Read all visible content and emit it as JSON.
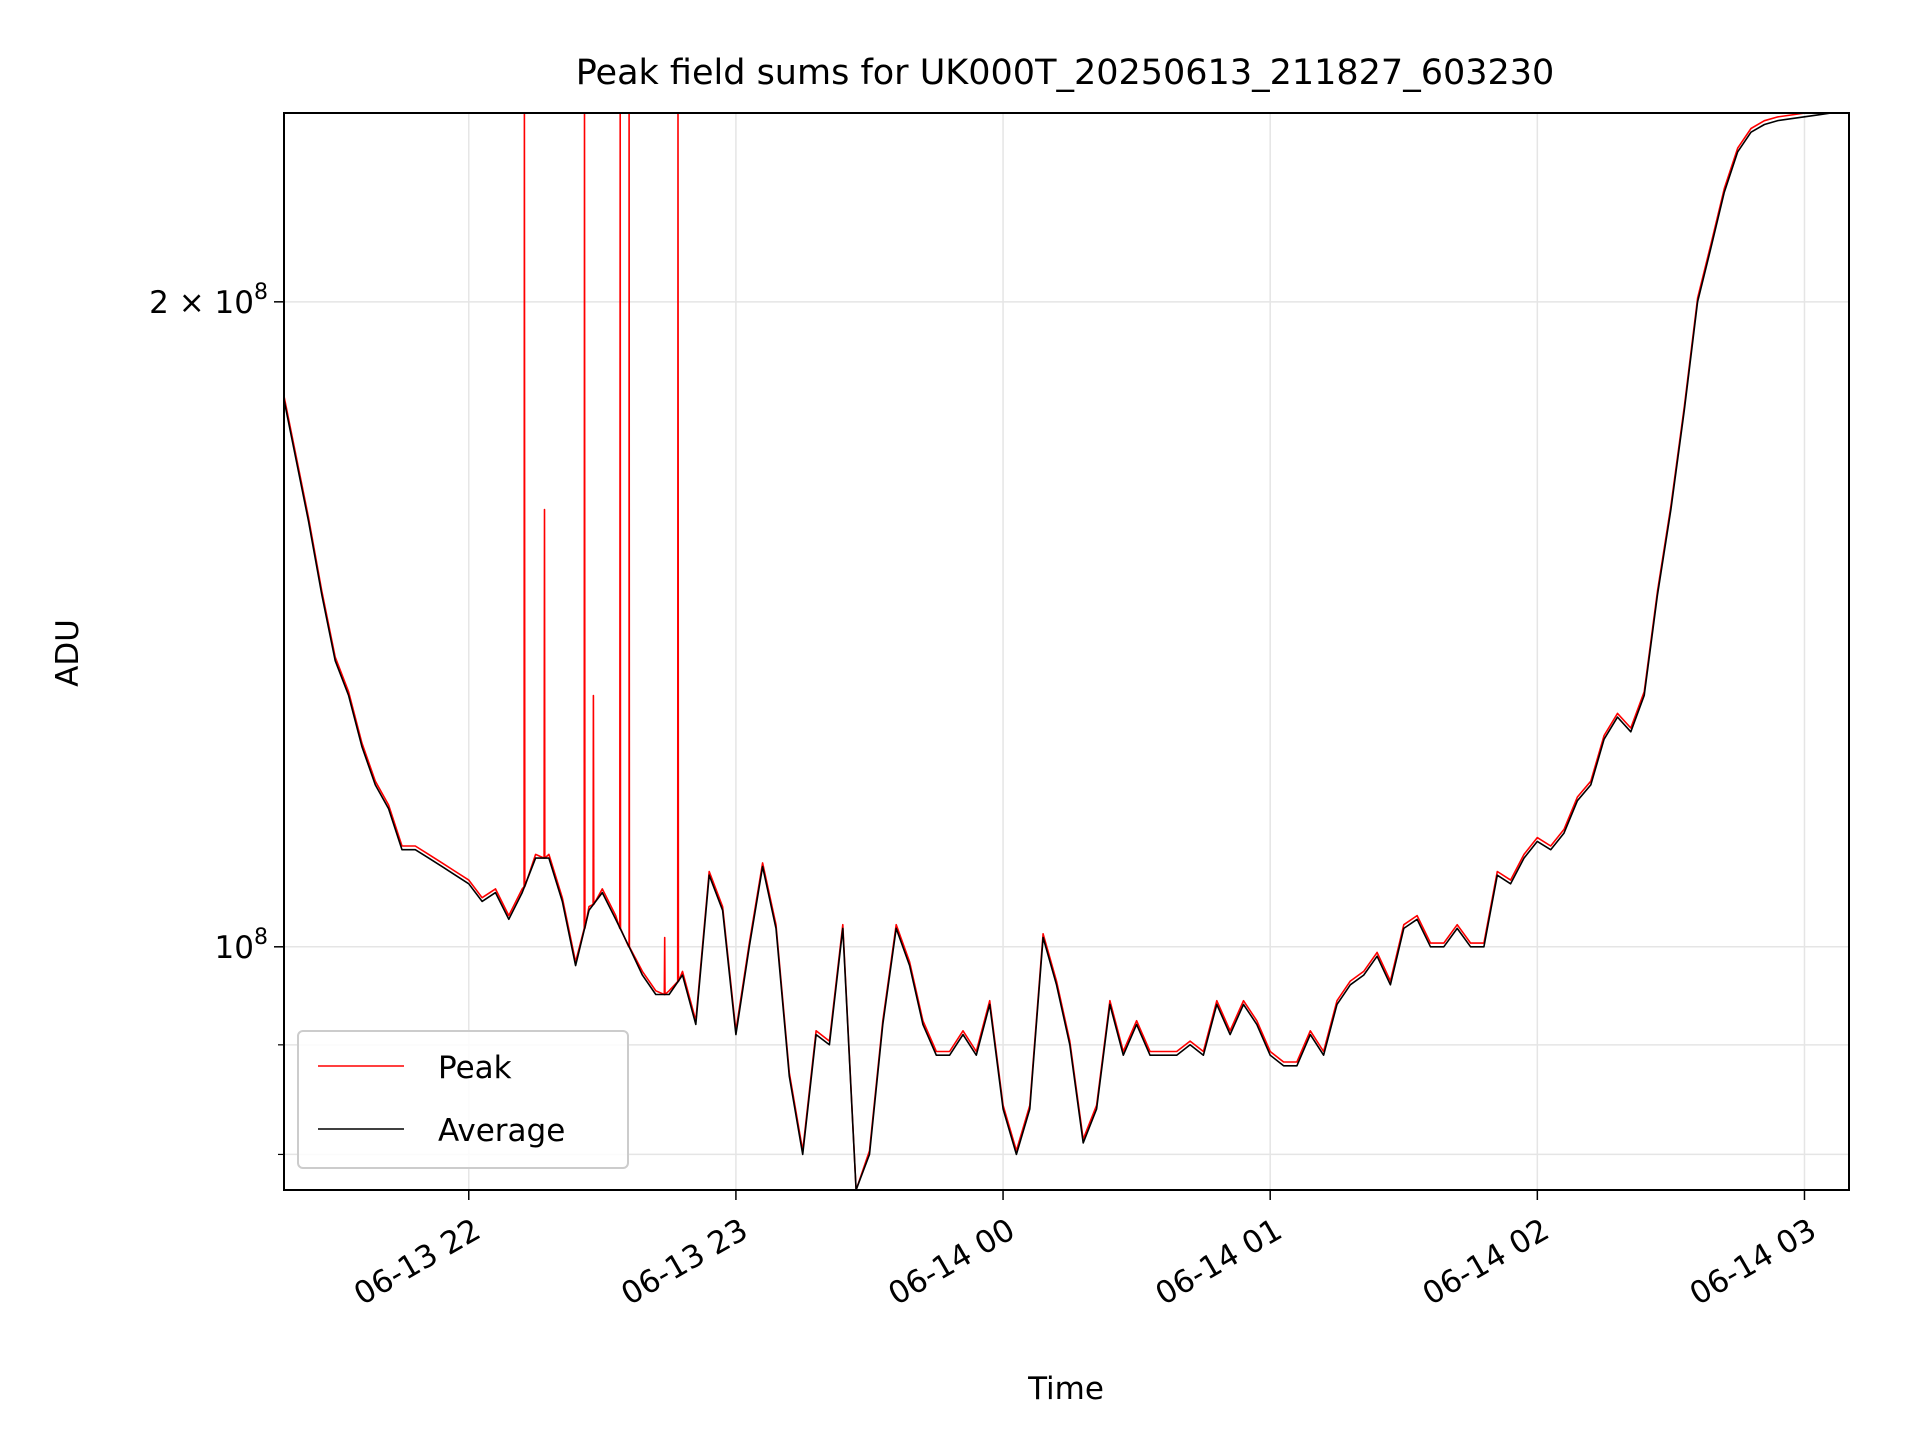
{
  "chart_data": {
    "type": "line",
    "title": "Peak field sums for UK000T_20250613_211827_603230",
    "xlabel": "Time",
    "ylabel": "ADU",
    "x_scale": "time",
    "y_scale": "log",
    "xlim": [
      "2025-06-13 21:18:30",
      "2025-06-14 03:10:00"
    ],
    "ylim": [
      77000000,
      245000000
    ],
    "x_ticks": [
      {
        "value": "2025-06-13 22:00",
        "label": "06-13 22"
      },
      {
        "value": "2025-06-13 23:00",
        "label": "06-13 23"
      },
      {
        "value": "2025-06-14 00:00",
        "label": "06-14 00"
      },
      {
        "value": "2025-06-14 01:00",
        "label": "06-14 01"
      },
      {
        "value": "2025-06-14 02:00",
        "label": "06-14 02"
      },
      {
        "value": "2025-06-14 03:00",
        "label": "06-14 03"
      }
    ],
    "y_major_ticks": [
      {
        "value": 100000000,
        "base": "10",
        "exp": "8"
      },
      {
        "value": 200000000,
        "mantissa": "2 × ",
        "base": "10",
        "exp": "8"
      }
    ],
    "y_minor_ticks": [
      80000000,
      90000000
    ],
    "grid": true,
    "legend_position": "lower-left",
    "series": [
      {
        "name": "Average",
        "color": "#000000",
        "x": [
          "2025-06-13 21:18:30",
          "2025-06-13 21:24",
          "2025-06-13 21:27",
          "2025-06-13 21:30",
          "2025-06-13 21:33",
          "2025-06-13 21:36",
          "2025-06-13 21:39",
          "2025-06-13 21:42",
          "2025-06-13 21:45",
          "2025-06-13 21:48",
          "2025-06-13 21:51",
          "2025-06-13 21:54",
          "2025-06-13 21:57",
          "2025-06-13 22:00",
          "2025-06-13 22:03",
          "2025-06-13 22:06",
          "2025-06-13 22:09",
          "2025-06-13 22:12",
          "2025-06-13 22:15",
          "2025-06-13 22:18",
          "2025-06-13 22:21",
          "2025-06-13 22:24",
          "2025-06-13 22:27",
          "2025-06-13 22:30",
          "2025-06-13 22:33",
          "2025-06-13 22:36",
          "2025-06-13 22:39",
          "2025-06-13 22:42",
          "2025-06-13 22:45",
          "2025-06-13 22:48",
          "2025-06-13 22:51",
          "2025-06-13 22:54",
          "2025-06-13 22:57",
          "2025-06-13 23:00",
          "2025-06-13 23:03",
          "2025-06-13 23:06",
          "2025-06-13 23:09",
          "2025-06-13 23:12",
          "2025-06-13 23:15",
          "2025-06-13 23:18",
          "2025-06-13 23:21",
          "2025-06-13 23:24",
          "2025-06-13 23:27",
          "2025-06-13 23:30",
          "2025-06-13 23:33",
          "2025-06-13 23:36",
          "2025-06-13 23:39",
          "2025-06-13 23:42",
          "2025-06-13 23:45",
          "2025-06-13 23:48",
          "2025-06-13 23:51",
          "2025-06-13 23:54",
          "2025-06-13 23:57",
          "2025-06-14 00:00",
          "2025-06-14 00:03",
          "2025-06-14 00:06",
          "2025-06-14 00:09",
          "2025-06-14 00:12",
          "2025-06-14 00:15",
          "2025-06-14 00:18",
          "2025-06-14 00:21",
          "2025-06-14 00:24",
          "2025-06-14 00:27",
          "2025-06-14 00:30",
          "2025-06-14 00:33",
          "2025-06-14 00:36",
          "2025-06-14 00:39",
          "2025-06-14 00:42",
          "2025-06-14 00:45",
          "2025-06-14 00:48",
          "2025-06-14 00:51",
          "2025-06-14 00:54",
          "2025-06-14 00:57",
          "2025-06-14 01:00",
          "2025-06-14 01:03",
          "2025-06-14 01:06",
          "2025-06-14 01:09",
          "2025-06-14 01:12",
          "2025-06-14 01:15",
          "2025-06-14 01:18",
          "2025-06-14 01:21",
          "2025-06-14 01:24",
          "2025-06-14 01:27",
          "2025-06-14 01:30",
          "2025-06-14 01:33",
          "2025-06-14 01:36",
          "2025-06-14 01:39",
          "2025-06-14 01:42",
          "2025-06-14 01:45",
          "2025-06-14 01:48",
          "2025-06-14 01:51",
          "2025-06-14 01:54",
          "2025-06-14 01:57",
          "2025-06-14 02:00",
          "2025-06-14 02:03",
          "2025-06-14 02:06",
          "2025-06-14 02:09",
          "2025-06-14 02:12",
          "2025-06-14 02:15",
          "2025-06-14 02:18",
          "2025-06-14 02:21",
          "2025-06-14 02:24",
          "2025-06-14 02:27",
          "2025-06-14 02:30",
          "2025-06-14 02:33",
          "2025-06-14 02:36",
          "2025-06-14 02:39",
          "2025-06-14 02:42",
          "2025-06-14 02:45",
          "2025-06-14 02:48",
          "2025-06-14 02:51",
          "2025-06-14 02:54",
          "2025-06-14 02:57",
          "2025-06-14 03:00",
          "2025-06-14 03:03",
          "2025-06-14 03:06",
          "2025-06-14 03:09"
        ],
        "y": [
          180000000,
          158000000,
          146000000,
          136000000,
          131000000,
          124000000,
          119000000,
          116000000,
          111000000,
          111000000,
          110000000,
          109000000,
          108000000,
          107000000,
          105000000,
          106000000,
          103000000,
          106000000,
          110000000,
          110000000,
          105000000,
          98000000,
          104000000,
          106000000,
          103000000,
          100000000,
          97000000,
          95000000,
          95000000,
          97000000,
          92000000,
          108000000,
          104000000,
          91000000,
          100000000,
          109000000,
          102000000,
          87000000,
          80000000,
          91000000,
          90000000,
          102000000,
          76000000,
          80000000,
          92000000,
          102000000,
          98000000,
          92000000,
          89000000,
          89000000,
          91000000,
          89000000,
          94000000,
          84000000,
          80000000,
          84000000,
          101000000,
          96000000,
          90000000,
          81000000,
          84000000,
          94000000,
          89000000,
          92000000,
          89000000,
          89000000,
          89000000,
          90000000,
          89000000,
          94000000,
          91000000,
          94000000,
          92000000,
          89000000,
          88000000,
          88000000,
          91000000,
          89000000,
          94000000,
          96000000,
          97000000,
          99000000,
          96000000,
          102000000,
          103000000,
          100000000,
          100000000,
          102000000,
          100000000,
          100000000,
          108000000,
          107000000,
          110000000,
          112000000,
          111000000,
          113000000,
          117000000,
          119000000,
          125000000,
          128000000,
          126000000,
          131000000,
          146000000,
          160000000,
          178000000,
          200000000,
          212000000,
          225000000,
          235000000,
          240000000,
          242000000,
          243000000,
          243500000,
          244000000,
          244500000,
          245000000,
          245000000
        ]
      },
      {
        "name": "Peak",
        "color": "#ff0000",
        "note_spikes": [
          {
            "x": "2025-06-13 22:12:30",
            "y": 245000000
          },
          {
            "x": "2025-06-13 22:17:00",
            "y": 160000000
          },
          {
            "x": "2025-06-13 22:26:00",
            "y": 245000000
          },
          {
            "x": "2025-06-13 22:28:00",
            "y": 131000000
          },
          {
            "x": "2025-06-13 22:34:00",
            "y": 245000000
          },
          {
            "x": "2025-06-13 22:36:00",
            "y": 245000000
          },
          {
            "x": "2025-06-13 22:44:00",
            "y": 101000000
          },
          {
            "x": "2025-06-13 22:47:00",
            "y": 245000000
          }
        ]
      }
    ]
  }
}
